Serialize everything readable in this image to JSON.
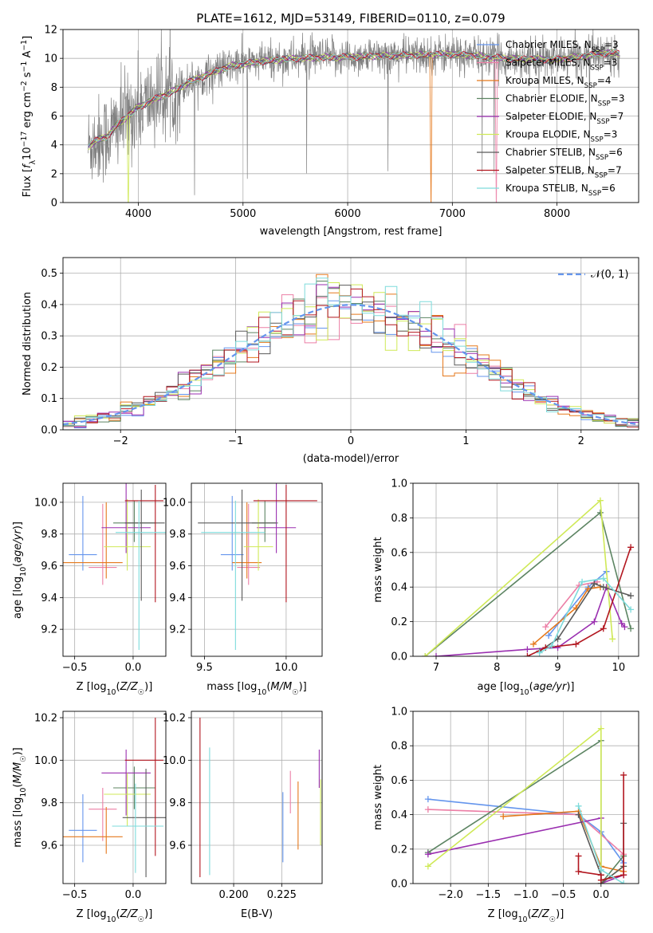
{
  "title": "PLATE=1612, MJD=53149, FIBERID=0110, z=0.079",
  "colors": {
    "Chabrier MILES": "#6495ed",
    "Salpeter MILES": "#ec7fa6",
    "Kroupa MILES": "#e5781b",
    "Chabrier ELODIE": "#5c8462",
    "Salpeter ELODIE": "#9a2fb0",
    "Kroupa ELODIE": "#cfe957",
    "Chabrier STELIB": "#5a5a5a",
    "Salpeter STELIB": "#b2161f",
    "Kroupa STELIB": "#7ddbdb",
    "data": "#808080",
    "gaussian": "#6495ed"
  },
  "chart_data": [
    {
      "id": "spectrum",
      "type": "line",
      "title": "PLATE=1612, MJD=53149, FIBERID=0110, z=0.079",
      "xlabel": "wavelength [Angstrom, rest frame]",
      "ylabel": "Flux [f_λ10^-17 erg cm^-2 s^-1 A^-1]",
      "xlim": [
        3280,
        8780
      ],
      "ylim": [
        0,
        12
      ],
      "xticks": [
        4000,
        5000,
        6000,
        7000,
        8000
      ],
      "yticks": [
        0,
        2,
        4,
        6,
        8,
        10,
        12
      ],
      "legend_position": "top-right",
      "legend": [
        {
          "model": "Chabrier MILES",
          "label": "Chabrier MILES, N",
          "sub": "SSP",
          "tail": "=3"
        },
        {
          "model": "Salpeter MILES",
          "label": "Salpeter MILES, N",
          "sub": "SSP",
          "tail": "=3"
        },
        {
          "model": "Kroupa MILES",
          "label": "Kroupa MILES, N",
          "sub": "SSP",
          "tail": "=4"
        },
        {
          "model": "Chabrier ELODIE",
          "label": "Chabrier ELODIE, N",
          "sub": "SSP",
          "tail": "=3"
        },
        {
          "model": "Salpeter ELODIE",
          "label": "Salpeter ELODIE, N",
          "sub": "SSP",
          "tail": "=7"
        },
        {
          "model": "Kroupa ELODIE",
          "label": "Kroupa ELODIE, N",
          "sub": "SSP",
          "tail": "=3"
        },
        {
          "model": "Chabrier STELIB",
          "label": "Chabrier STELIB, N",
          "sub": "SSP",
          "tail": "=6"
        },
        {
          "model": "Salpeter STELIB",
          "label": "Salpeter STELIB, N",
          "sub": "SSP",
          "tail": "=7"
        },
        {
          "model": "Kroupa STELIB",
          "label": "Kroupa STELIB, N",
          "sub": "SSP",
          "tail": "=6"
        }
      ],
      "continuum_knots": [
        [
          3520,
          3.9
        ],
        [
          3600,
          4.3
        ],
        [
          3700,
          4.6
        ],
        [
          3800,
          5.4
        ],
        [
          3900,
          6.0
        ],
        [
          4000,
          6.6
        ],
        [
          4100,
          7.0
        ],
        [
          4200,
          7.3
        ],
        [
          4300,
          7.6
        ],
        [
          4500,
          8.4
        ],
        [
          4700,
          9.0
        ],
        [
          4900,
          9.5
        ],
        [
          5200,
          9.8
        ],
        [
          5500,
          10.0
        ],
        [
          6000,
          10.1
        ],
        [
          6500,
          10.2
        ],
        [
          7000,
          10.3
        ],
        [
          7500,
          10.0
        ],
        [
          8000,
          9.9
        ],
        [
          8500,
          10.4
        ],
        [
          8600,
          10.3
        ]
      ],
      "model_drops": [
        {
          "model": "Kroupa ELODIE",
          "x": 3900
        },
        {
          "model": "Kroupa MILES",
          "x": 6800
        },
        {
          "model": "Salpeter MILES",
          "x": 7420
        }
      ],
      "data_noise_amplitude": 1.2
    },
    {
      "id": "residuals",
      "type": "histogram",
      "xlabel": "(data-model)/error",
      "ylabel": "Normed distribution",
      "xlim": [
        -2.5,
        2.5
      ],
      "ylim": [
        0,
        0.55
      ],
      "xticks": [
        -2,
        -1,
        0,
        1,
        2
      ],
      "yticks": [
        0.0,
        0.1,
        0.2,
        0.3,
        0.4,
        0.5
      ],
      "bin_width": 0.1,
      "legend_position": "top-right",
      "legend": [
        "𝒩(0, 1)"
      ],
      "grid": true
    },
    {
      "id": "age-vs-Z",
      "type": "errorbar",
      "xlabel": "Z [log10(Z/Z☉)]",
      "ylabel": "age [log10(age/yr)]",
      "xlim": [
        -0.6,
        0.28
      ],
      "ylim": [
        9.03,
        10.12
      ],
      "xticks": [
        -0.5,
        0.0
      ],
      "yticks": [
        9.2,
        9.4,
        9.6,
        9.8,
        10.0
      ],
      "points": [
        {
          "model": "Chabrier MILES",
          "x": -0.43,
          "xerr": [
            0.12,
            0.12
          ],
          "y": 9.67,
          "yerr": [
            0.1,
            0.37
          ]
        },
        {
          "model": "Salpeter MILES",
          "x": -0.26,
          "xerr": [
            0.12,
            0.12
          ],
          "y": 9.59,
          "yerr": [
            0.11,
            0.4
          ]
        },
        {
          "model": "Kroupa MILES",
          "x": -0.23,
          "xerr": [
            0.37,
            0.14
          ],
          "y": 9.62,
          "yerr": [
            0.1,
            0.38
          ]
        },
        {
          "model": "Chabrier ELODIE",
          "x": 0.01,
          "xerr": [
            0.18,
            0.18
          ],
          "y": 9.87,
          "yerr": [
            0.12,
            0.14
          ]
        },
        {
          "model": "Salpeter ELODIE",
          "x": -0.06,
          "xerr": [
            0.21,
            0.21
          ],
          "y": 9.84,
          "yerr": [
            0.16,
            0.3
          ]
        },
        {
          "model": "Kroupa ELODIE",
          "x": -0.05,
          "xerr": [
            0.2,
            0.2
          ],
          "y": 9.72,
          "yerr": [
            0.15,
            0.3
          ]
        },
        {
          "model": "Chabrier STELIB",
          "x": 0.07,
          "xerr": [
            0.14,
            0.2
          ],
          "y": 9.87,
          "yerr": [
            0.49,
            0.21
          ]
        },
        {
          "model": "Salpeter STELIB",
          "x": 0.19,
          "xerr": [
            0.26,
            0.07
          ],
          "y": 10.01,
          "yerr": [
            0.64,
            0.1
          ]
        },
        {
          "model": "Kroupa STELIB",
          "x": 0.05,
          "xerr": [
            0.2,
            0.25
          ],
          "y": 9.81,
          "yerr": [
            0.74,
            0.2
          ]
        }
      ]
    },
    {
      "id": "age-vs-mass",
      "type": "errorbar",
      "xlabel": "mass [log10(M/M☉)]",
      "ylabel": "",
      "xlim": [
        9.42,
        10.22
      ],
      "ylim": [
        9.03,
        10.12
      ],
      "xticks": [
        9.5,
        10.0
      ],
      "yticks": [
        9.2,
        9.4,
        9.6,
        9.8,
        10.0
      ],
      "points": [
        {
          "model": "Chabrier MILES",
          "x": 9.67,
          "xerr": [
            0.07,
            0.07
          ],
          "y": 9.67,
          "yerr": [
            0.1,
            0.37
          ]
        },
        {
          "model": "Salpeter MILES",
          "x": 9.77,
          "xerr": [
            0.07,
            0.07
          ],
          "y": 9.59,
          "yerr": [
            0.11,
            0.4
          ]
        },
        {
          "model": "Kroupa MILES",
          "x": 9.76,
          "xerr": [
            0.09,
            0.09
          ],
          "y": 9.62,
          "yerr": [
            0.1,
            0.38
          ]
        },
        {
          "model": "Chabrier ELODIE",
          "x": 9.87,
          "xerr": [
            0.08,
            0.08
          ],
          "y": 9.87,
          "yerr": [
            0.12,
            0.14
          ]
        },
        {
          "model": "Salpeter ELODIE",
          "x": 9.94,
          "xerr": [
            0.12,
            0.12
          ],
          "y": 9.84,
          "yerr": [
            0.16,
            0.3
          ]
        },
        {
          "model": "Kroupa ELODIE",
          "x": 9.83,
          "xerr": [
            0.09,
            0.09
          ],
          "y": 9.72,
          "yerr": [
            0.15,
            0.3
          ]
        },
        {
          "model": "Chabrier STELIB",
          "x": 9.73,
          "xerr": [
            0.27,
            0.21
          ],
          "y": 9.87,
          "yerr": [
            0.49,
            0.21
          ]
        },
        {
          "model": "Salpeter STELIB",
          "x": 10.0,
          "xerr": [
            0.2,
            0.19
          ],
          "y": 10.01,
          "yerr": [
            0.64,
            0.1
          ]
        },
        {
          "model": "Kroupa STELIB",
          "x": 9.69,
          "xerr": [
            0.21,
            0.18
          ],
          "y": 9.81,
          "yerr": [
            0.74,
            0.2
          ]
        }
      ]
    },
    {
      "id": "weight-vs-age",
      "type": "line",
      "xlabel": "age [log10(age/yr)]",
      "ylabel": "mass weight",
      "xlim": [
        6.62,
        10.33
      ],
      "ylim": [
        0,
        1
      ],
      "xticks": [
        7,
        8,
        9,
        10
      ],
      "yticks": [
        0.0,
        0.2,
        0.4,
        0.6,
        0.8,
        1.0
      ],
      "series": [
        {
          "model": "Chabrier MILES",
          "x": [
            8.85,
            9.5,
            9.8
          ],
          "y": [
            0.12,
            0.4,
            0.49
          ]
        },
        {
          "model": "Salpeter MILES",
          "x": [
            8.8,
            9.35,
            9.65
          ],
          "y": [
            0.17,
            0.41,
            0.43
          ]
        },
        {
          "model": "Kroupa MILES",
          "x": [
            8.6,
            9.3,
            9.5,
            9.7
          ],
          "y": [
            0.07,
            0.28,
            0.39,
            0.4
          ]
        },
        {
          "model": "Chabrier ELODIE",
          "x": [
            6.82,
            9.7,
            10.2
          ],
          "y": [
            0.0,
            0.83,
            0.16
          ]
        },
        {
          "model": "Salpeter ELODIE",
          "x": [
            7.0,
            8.5,
            9.0,
            9.6,
            9.8,
            10.05,
            10.1
          ],
          "y": [
            0.0,
            0.04,
            0.05,
            0.2,
            0.4,
            0.19,
            0.17
          ]
        },
        {
          "model": "Kroupa ELODIE",
          "x": [
            6.82,
            9.7,
            9.9
          ],
          "y": [
            0.0,
            0.9,
            0.1
          ]
        },
        {
          "model": "Chabrier STELIB",
          "x": [
            8.7,
            9.0,
            9.6,
            9.75,
            10.2
          ],
          "y": [
            0.03,
            0.1,
            0.42,
            0.4,
            0.35
          ]
        },
        {
          "model": "Salpeter STELIB",
          "x": [
            8.5,
            8.8,
            9.3,
            9.75,
            10.2
          ],
          "y": [
            0.0,
            0.05,
            0.07,
            0.16,
            0.63
          ]
        },
        {
          "model": "Kroupa STELIB",
          "x": [
            8.7,
            8.9,
            9.4,
            9.75,
            10.2
          ],
          "y": [
            0.02,
            0.06,
            0.43,
            0.45,
            0.27
          ]
        }
      ]
    },
    {
      "id": "mass-vs-Z",
      "type": "errorbar",
      "xlabel": "Z [log10(Z/Z☉)]",
      "ylabel": "mass [log10(M/M☉)]",
      "xlim": [
        -0.6,
        0.28
      ],
      "ylim": [
        9.42,
        10.23
      ],
      "xticks": [
        -0.5,
        0.0
      ],
      "yticks": [
        9.6,
        9.8,
        10.0,
        10.2
      ],
      "points": [
        {
          "model": "Chabrier MILES",
          "x": -0.43,
          "xerr": [
            0.12,
            0.12
          ],
          "y": 9.67,
          "yerr": [
            0.15,
            0.17
          ]
        },
        {
          "model": "Salpeter MILES",
          "x": -0.26,
          "xerr": [
            0.12,
            0.12
          ],
          "y": 9.77,
          "yerr": [
            0.15,
            0.1
          ]
        },
        {
          "model": "Kroupa MILES",
          "x": -0.23,
          "xerr": [
            0.37,
            0.14
          ],
          "y": 9.64,
          "yerr": [
            0.08,
            0.14
          ]
        },
        {
          "model": "Chabrier ELODIE",
          "x": 0.01,
          "xerr": [
            0.18,
            0.18
          ],
          "y": 9.87,
          "yerr": [
            0.1,
            0.1
          ]
        },
        {
          "model": "Salpeter ELODIE",
          "x": -0.06,
          "xerr": [
            0.21,
            0.21
          ],
          "y": 9.94,
          "yerr": [
            0.2,
            0.11
          ]
        },
        {
          "model": "Kroupa ELODIE",
          "x": -0.05,
          "xerr": [
            0.2,
            0.2
          ],
          "y": 9.84,
          "yerr": [
            0.15,
            0.1
          ]
        },
        {
          "model": "Chabrier STELIB",
          "x": 0.11,
          "xerr": [
            0.2,
            0.2
          ],
          "y": 9.73,
          "yerr": [
            0.28,
            0.23
          ]
        },
        {
          "model": "Salpeter STELIB",
          "x": 0.19,
          "xerr": [
            0.26,
            0.07
          ],
          "y": 10.0,
          "yerr": [
            0.45,
            0.2
          ]
        },
        {
          "model": "Kroupa STELIB",
          "x": 0.02,
          "xerr": [
            0.2,
            0.24
          ],
          "y": 9.69,
          "yerr": [
            0.22,
            0.2
          ]
        }
      ]
    },
    {
      "id": "ebv",
      "type": "errorbar",
      "xlabel": "E(B-V)",
      "ylabel": "",
      "xlim": [
        0.178,
        0.246
      ],
      "ylim": [
        9.42,
        10.23
      ],
      "xticks": [
        0.2,
        0.225
      ],
      "xticklabels": [
        "0.200",
        "0.225"
      ],
      "yticks": [
        9.6,
        9.8,
        10.0,
        10.2
      ],
      "points": [
        {
          "model": "Salpeter STELIB",
          "x": 0.1825,
          "y": 9.8,
          "yerr": [
            0.35,
            0.4
          ]
        },
        {
          "model": "Kroupa STELIB",
          "x": 0.1875,
          "y": 9.76,
          "yerr": [
            0.3,
            0.3
          ]
        },
        {
          "model": "Chabrier MILES",
          "x": 0.2256,
          "y": 9.68,
          "yerr": [
            0.16,
            0.17
          ]
        },
        {
          "model": "Salpeter MILES",
          "x": 0.2295,
          "y": 9.85,
          "yerr": [
            0.1,
            0.1
          ]
        },
        {
          "model": "Kroupa MILES",
          "x": 0.2335,
          "y": 9.74,
          "yerr": [
            0.16,
            0.16
          ]
        },
        {
          "model": "Salpeter ELODIE",
          "x": 0.2445,
          "y": 9.97,
          "yerr": [
            0.1,
            0.08
          ]
        },
        {
          "model": "Kroupa ELODIE",
          "x": 0.2452,
          "y": 9.75,
          "yerr": [
            0.15,
            0.16
          ]
        }
      ]
    },
    {
      "id": "weight-vs-Z",
      "type": "line",
      "xlabel": "Z [log10(Z/Z☉)]",
      "ylabel": "mass weight",
      "xlim": [
        -2.5,
        0.5
      ],
      "ylim": [
        0,
        1
      ],
      "xticks": [
        -2.0,
        -1.5,
        -1.0,
        -0.5,
        0.0
      ],
      "yticks": [
        0.0,
        0.2,
        0.4,
        0.6,
        0.8,
        1.0
      ],
      "series": [
        {
          "model": "Chabrier MILES",
          "x": [
            -2.3,
            -0.3,
            0.0,
            0.3
          ],
          "y": [
            0.49,
            0.4,
            0.3,
            0.12
          ]
        },
        {
          "model": "Salpeter MILES",
          "x": [
            -2.3,
            -0.3,
            0.3
          ],
          "y": [
            0.43,
            0.4,
            0.17
          ]
        },
        {
          "model": "Kroupa MILES",
          "x": [
            -1.3,
            -0.3,
            0.0,
            0.3
          ],
          "y": [
            0.39,
            0.42,
            0.1,
            0.07
          ]
        },
        {
          "model": "Chabrier ELODIE",
          "x": [
            -2.3,
            0.0,
            0.0,
            0.3
          ],
          "y": [
            0.18,
            0.83,
            0.0,
            0.16
          ]
        },
        {
          "model": "Salpeter ELODIE",
          "x": [
            -2.3,
            0.0,
            0.0,
            0.3
          ],
          "y": [
            0.17,
            0.38,
            0.0,
            0.05
          ]
        },
        {
          "model": "Kroupa ELODIE",
          "x": [
            -2.3,
            0.0,
            0.0,
            0.3
          ],
          "y": [
            0.1,
            0.9,
            0.0,
            0.1
          ]
        },
        {
          "model": "Chabrier STELIB",
          "x": [
            -0.3,
            0.0,
            0.0,
            0.3,
            0.3
          ],
          "y": [
            0.4,
            0.05,
            0.0,
            0.1,
            0.35
          ]
        },
        {
          "model": "Salpeter STELIB",
          "x": [
            -0.3,
            -0.3,
            0.0,
            0.0,
            0.3,
            0.3
          ],
          "y": [
            0.16,
            0.07,
            0.05,
            0.02,
            0.05,
            0.63
          ]
        },
        {
          "model": "Kroupa STELIB",
          "x": [
            -0.3,
            0.0,
            0.3
          ],
          "y": [
            0.45,
            0.08,
            0.0
          ]
        }
      ]
    }
  ]
}
